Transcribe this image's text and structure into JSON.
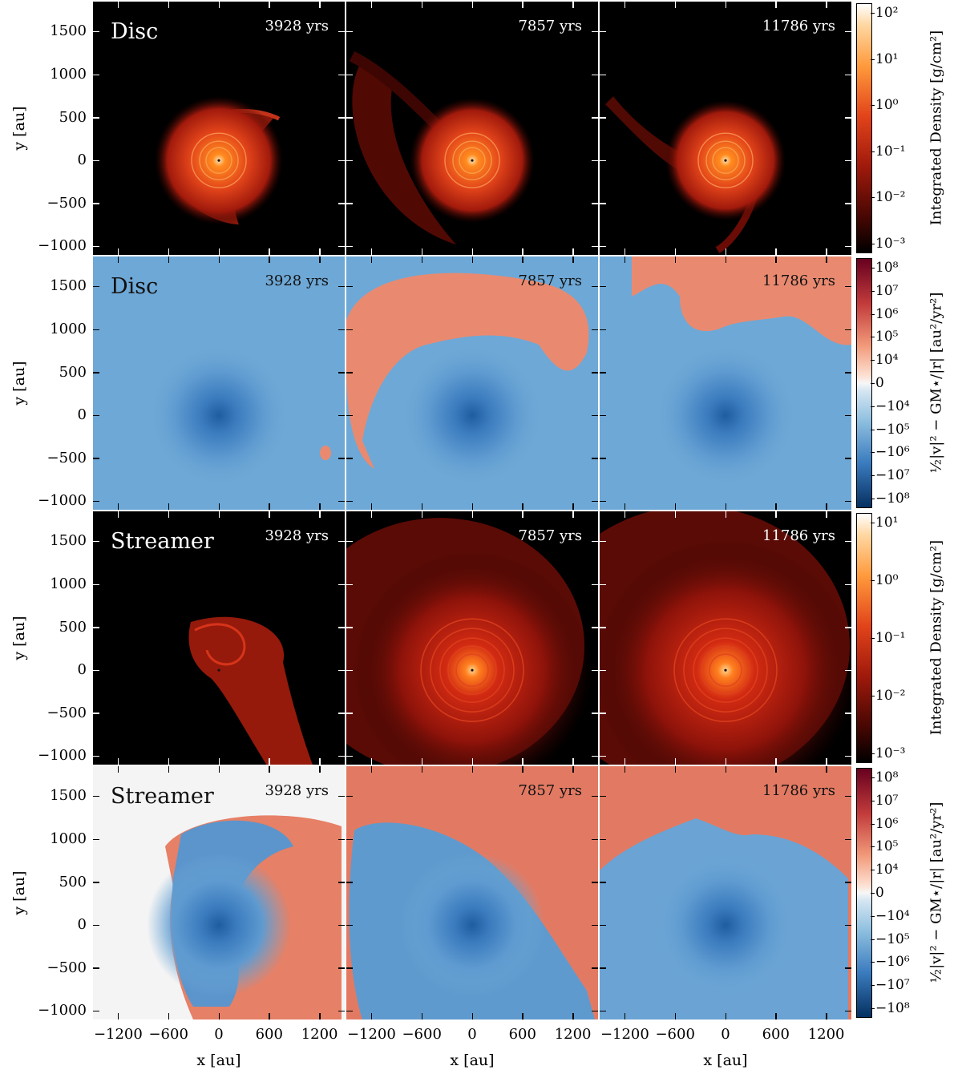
{
  "figure": {
    "rows": [
      {
        "kind": "density",
        "label": "Disc"
      },
      {
        "kind": "energy",
        "label": "Disc"
      },
      {
        "kind": "density",
        "label": "Streamer"
      },
      {
        "kind": "energy",
        "label": "Streamer"
      }
    ],
    "times": [
      "3928 yrs",
      "7857 yrs",
      "11786 yrs"
    ],
    "ylabel": "y [au]",
    "xlabel": "x [au]",
    "ytick_labels": [
      "1500",
      "1000",
      "500",
      "0",
      "−500",
      "−1000"
    ],
    "xtick_labels": [
      "−1200",
      "−600",
      "0",
      "600",
      "1200"
    ],
    "colorbars": [
      {
        "label": "Integrated Density [g/cm²]",
        "ticks": [
          "10²",
          "10¹",
          "10⁰",
          "10⁻¹",
          "10⁻²",
          "10⁻³"
        ]
      },
      {
        "label": "½|v|² − GM⋆/|r| [au²/yr²]",
        "ticks": [
          "10⁸",
          "10⁷",
          "10⁶",
          "10⁵",
          "10⁴",
          "0",
          "−10⁴",
          "−10⁵",
          "−10⁶",
          "−10⁷",
          "−10⁸"
        ]
      },
      {
        "label": "Integrated Density [g/cm²]",
        "ticks": [
          "10¹",
          "10⁰",
          "10⁻¹",
          "10⁻²",
          "10⁻³"
        ]
      },
      {
        "label": "½|v|² − GM⋆/|r| [au²/yr²]",
        "ticks": [
          "10⁸",
          "10⁷",
          "10⁶",
          "10⁵",
          "10⁴",
          "0",
          "−10⁴",
          "−10⁵",
          "−10⁶",
          "−10⁷",
          "−10⁸"
        ]
      }
    ]
  },
  "chart_data": {
    "type": "heatmap",
    "panel_grid": [
      4,
      3
    ],
    "x_range": [
      -1500,
      1500
    ],
    "y_range": [
      -1100,
      1850
    ],
    "x_ticks": [
      -1200,
      -600,
      0,
      600,
      1200
    ],
    "y_ticks": [
      -1000,
      -500,
      0,
      500,
      1000,
      1500
    ],
    "density_norm": "log",
    "density_range_disc": [
      0.001,
      500
    ],
    "density_range_streamer": [
      0.001,
      50
    ],
    "energy_norm": "symlog",
    "energy_range": [
      -100000000,
      100000000
    ],
    "colormap_density": "black-red-orange-white",
    "colormap_energy": "blue-white-red",
    "colors": {
      "bound": "#6ea8d6",
      "unbound": "#e98a70",
      "neutral": "#f4f4f4",
      "dense": "#ff7a1c"
    }
  }
}
